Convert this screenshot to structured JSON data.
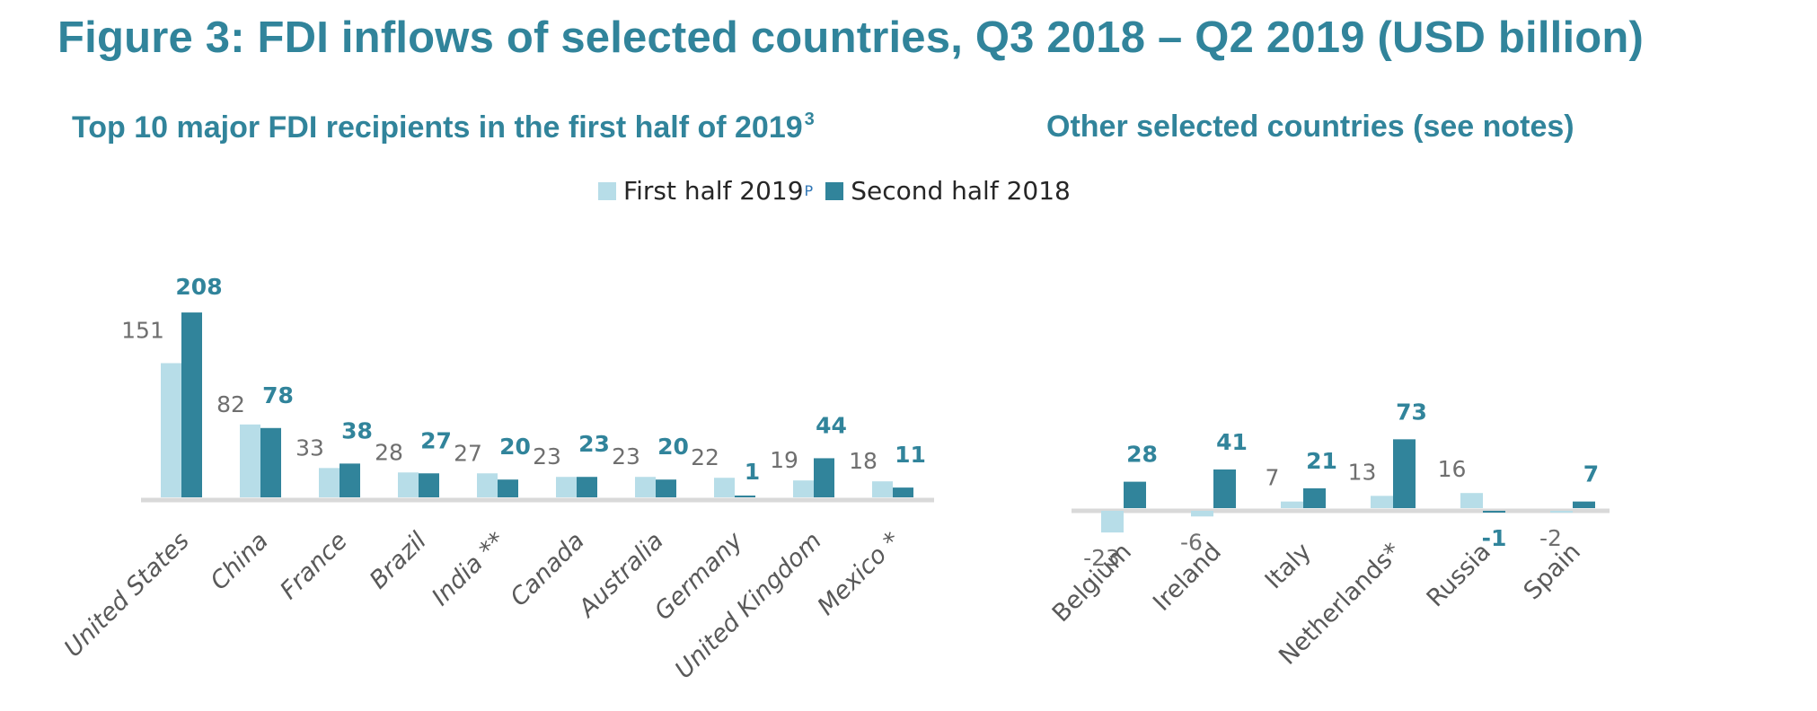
{
  "title": "Figure 3: FDI inflows of selected countries, Q3 2018 – Q2 2019  (USD billion)",
  "subtitle_left": {
    "text": "Top 10 major FDI recipients in the first half of 2019",
    "sup": "3"
  },
  "subtitle_right": {
    "text": "Other selected countries (see notes)"
  },
  "legend": {
    "items": [
      {
        "label": "First half 2019",
        "sup": "P",
        "color": "#b7dde8"
      },
      {
        "label": "Second half 2018",
        "sup": "",
        "color": "#31849b"
      }
    ]
  },
  "colors": {
    "first_half_2019": "#b7dde8",
    "second_half_2018": "#31849b",
    "axis": "#d9d9d9",
    "leader": "#a6a6a6",
    "title": "#31849b"
  },
  "chart_data": [
    {
      "type": "bar",
      "title": "Top 10 major FDI recipients in the first half of 2019",
      "xlabel": "",
      "ylabel": "USD billion",
      "ylim": [
        0,
        210
      ],
      "grid": false,
      "legend_position": "top",
      "categories": [
        "United States",
        "China",
        "France",
        "Brazil",
        "India **",
        "Canada",
        "Australia",
        "Germany",
        "United Kingdom",
        "Mexico *"
      ],
      "series": [
        {
          "name": "First half 2019P",
          "values": [
            151,
            82,
            33,
            28,
            27,
            23,
            23,
            22,
            19,
            18
          ]
        },
        {
          "name": "Second half 2018",
          "values": [
            208,
            78,
            38,
            27,
            20,
            23,
            20,
            1,
            44,
            11
          ]
        }
      ]
    },
    {
      "type": "bar",
      "title": "Other selected countries (see notes)",
      "xlabel": "",
      "ylabel": "USD billion",
      "ylim": [
        -25,
        75
      ],
      "grid": false,
      "legend_position": "top",
      "categories": [
        "Belgium",
        "Ireland",
        "Italy",
        "Netherlands*",
        "Russia",
        "Spain"
      ],
      "series": [
        {
          "name": "First half 2019P",
          "values": [
            -23,
            -6,
            7,
            13,
            16,
            -2
          ]
        },
        {
          "name": "Second half 2018",
          "values": [
            28,
            41,
            21,
            73,
            -1,
            7
          ]
        }
      ]
    }
  ]
}
